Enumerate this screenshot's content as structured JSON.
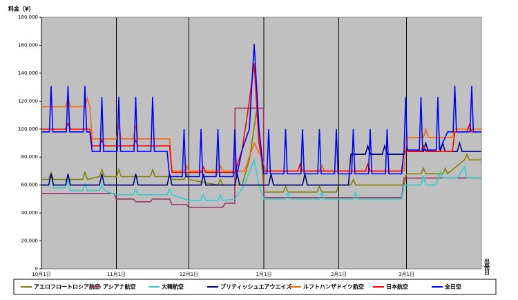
{
  "chart_data": {
    "type": "line",
    "y_label": "料金（¥）",
    "x_label": "出発日",
    "xlim": [
      0,
      182
    ],
    "ylim": [
      0,
      180000
    ],
    "xticks": [
      {
        "value": 0,
        "label": "10月1日"
      },
      {
        "value": 31,
        "label": "11月1日"
      },
      {
        "value": 61,
        "label": "12月1日"
      },
      {
        "value": 92,
        "label": "1月1日"
      },
      {
        "value": 123,
        "label": "2月1日"
      },
      {
        "value": 151,
        "label": "3月1日"
      }
    ],
    "yticks": [
      0,
      {
        "value": 20000,
        "label": "20,000"
      },
      {
        "value": 40000,
        "label": "40,000"
      },
      {
        "value": 60000,
        "label": "60,000"
      },
      {
        "value": 80000,
        "label": "80,000"
      },
      {
        "value": 100000,
        "label": "100,000"
      },
      {
        "value": 120000,
        "label": "120,000"
      },
      {
        "value": 140000,
        "label": "140,000"
      },
      {
        "value": 160000,
        "label": "160,000"
      },
      {
        "value": 180000,
        "label": "180,000"
      }
    ],
    "series": [
      {
        "name": "アエロフロートロシア航空",
        "color": "#808000",
        "x": [
          0,
          3,
          4,
          5,
          17,
          18,
          19,
          24,
          25,
          26,
          31,
          32,
          33,
          45,
          46,
          47,
          53,
          54,
          59,
          60,
          61,
          73,
          74,
          75,
          83,
          86,
          89,
          91,
          92,
          100,
          101,
          102,
          114,
          115,
          116,
          122,
          123,
          128,
          129,
          130,
          150,
          151,
          157,
          158,
          159,
          166,
          167,
          168,
          175,
          176,
          177,
          182
        ],
        "values": [
          64000,
          64000,
          69000,
          64000,
          64000,
          69000,
          64000,
          66000,
          71000,
          66000,
          66000,
          71000,
          66000,
          66000,
          71000,
          66000,
          66000,
          64000,
          64000,
          68000,
          64000,
          60000,
          64000,
          60000,
          60000,
          78000,
          113000,
          80000,
          55000,
          55000,
          59000,
          55000,
          55000,
          59000,
          55000,
          55000,
          60000,
          60000,
          64000,
          60000,
          60000,
          68000,
          68000,
          72000,
          68000,
          68000,
          72000,
          68000,
          78000,
          82000,
          78000,
          78000
        ]
      },
      {
        "name": "アシアナ航空",
        "color": "#993366",
        "x": [
          0,
          30,
          31,
          38,
          39,
          45,
          46,
          53,
          54,
          60,
          61,
          75,
          76,
          80,
          80.1,
          91.9,
          92,
          122,
          123,
          149,
          150,
          182
        ],
        "values": [
          54000,
          54000,
          50000,
          50000,
          48000,
          48000,
          50000,
          50000,
          46000,
          46000,
          44000,
          44000,
          47000,
          47000,
          115000,
          115000,
          51000,
          51000,
          51000,
          51000,
          65000,
          65000
        ]
      },
      {
        "name": "大韓航空",
        "color": "#33cccc",
        "x": [
          0,
          3,
          4,
          5,
          10,
          11,
          12,
          17,
          18,
          19,
          24,
          25,
          26,
          31,
          38,
          39,
          40,
          52,
          53,
          54,
          61,
          66,
          67,
          68,
          73,
          74,
          75,
          80,
          84,
          88,
          90,
          92,
          101,
          102,
          103,
          115,
          116,
          117,
          129,
          130,
          131,
          149,
          150,
          157,
          158,
          159,
          163,
          165,
          166,
          172,
          175,
          176,
          182
        ],
        "values": [
          60000,
          60000,
          68000,
          58000,
          58000,
          64000,
          56000,
          56000,
          61000,
          56000,
          56000,
          60000,
          56000,
          53000,
          53000,
          57000,
          53000,
          53000,
          57000,
          53000,
          49000,
          49000,
          53000,
          49000,
          49000,
          53000,
          49000,
          50000,
          60000,
          78000,
          60000,
          50000,
          50000,
          55000,
          50000,
          50000,
          55000,
          50000,
          50000,
          55000,
          50000,
          50000,
          60000,
          60000,
          67000,
          60000,
          60000,
          69000,
          65000,
          65000,
          73000,
          65000,
          65000
        ]
      },
      {
        "name": "ブリティッシュエアウエイズ",
        "color": "#000080",
        "x": [
          0,
          3,
          4,
          5,
          10,
          11,
          12,
          24,
          25,
          26,
          38,
          39,
          40,
          52,
          53,
          54,
          66,
          67,
          68,
          80,
          81,
          82,
          94,
          95,
          96,
          108,
          109,
          110,
          127,
          128,
          134,
          135,
          136,
          141,
          142,
          143,
          150,
          151,
          158,
          159,
          160,
          165,
          166,
          167,
          172,
          173,
          174,
          182
        ],
        "values": [
          60000,
          60000,
          68000,
          60000,
          60000,
          68000,
          60000,
          60000,
          68000,
          60000,
          60000,
          68000,
          60000,
          60000,
          68000,
          60000,
          60000,
          68000,
          60000,
          60000,
          68000,
          60000,
          60000,
          68000,
          60000,
          60000,
          68000,
          60000,
          60000,
          82000,
          82000,
          88000,
          82000,
          82000,
          88000,
          82000,
          82000,
          84000,
          84000,
          90000,
          84000,
          84000,
          90000,
          84000,
          84000,
          90000,
          84000,
          84000
        ]
      },
      {
        "name": "ルフトハンザドイツ航空",
        "color": "#ff6600",
        "x": [
          0,
          10,
          11,
          12,
          18,
          19,
          20,
          21,
          31,
          32,
          33,
          38,
          39,
          40,
          53,
          54,
          59,
          60,
          61,
          73,
          74,
          75,
          84,
          88,
          91,
          93,
          115,
          116,
          117,
          150,
          151,
          158,
          159,
          160,
          170,
          171,
          182
        ],
        "values": [
          116000,
          116000,
          122000,
          116000,
          116000,
          122000,
          116000,
          93000,
          93000,
          103000,
          93000,
          93000,
          103000,
          93000,
          93000,
          70000,
          70000,
          74000,
          70000,
          70000,
          74000,
          70000,
          70000,
          90000,
          80000,
          70000,
          70000,
          74000,
          70000,
          70000,
          94000,
          94000,
          100000,
          94000,
          94000,
          100000,
          100000
        ]
      },
      {
        "name": "日本航空",
        "color": "#ff0000",
        "x": [
          0,
          10,
          11,
          12,
          20,
          21,
          24,
          25,
          26,
          38,
          39,
          40,
          53,
          54,
          66,
          67,
          68,
          80,
          83,
          86,
          88,
          90,
          92,
          106,
          107,
          108,
          134,
          135,
          136,
          149,
          150,
          157,
          158,
          159,
          170,
          171,
          176,
          177,
          178,
          182
        ],
        "values": [
          100000,
          100000,
          104000,
          100000,
          100000,
          88000,
          88000,
          92000,
          88000,
          88000,
          92000,
          88000,
          88000,
          69000,
          69000,
          73000,
          69000,
          69000,
          85000,
          120000,
          147000,
          90000,
          70000,
          70000,
          75000,
          70000,
          70000,
          75000,
          70000,
          70000,
          84000,
          84000,
          88000,
          84000,
          84000,
          98000,
          98000,
          103000,
          98000,
          98000
        ]
      },
      {
        "name": "全日空",
        "color": "#0000ff",
        "x": [
          0,
          3.3,
          4,
          4.7,
          10.3,
          11,
          11.7,
          17.3,
          18,
          18.7,
          20,
          21,
          24.3,
          25,
          25.7,
          31.3,
          32,
          32.7,
          38.3,
          39,
          39.7,
          45.3,
          46,
          46.7,
          52,
          53,
          58.3,
          59,
          59.7,
          65.3,
          66,
          66.7,
          72.3,
          73,
          73.7,
          79.3,
          80,
          80.7,
          83,
          86,
          88,
          90,
          92,
          93.3,
          94,
          94.7,
          100.3,
          101,
          101.7,
          107.3,
          108,
          108.7,
          114.3,
          115,
          115.7,
          121.3,
          122,
          122.7,
          128.3,
          129,
          129.7,
          135.3,
          136,
          136.7,
          142.3,
          143,
          143.7,
          149,
          150,
          150.7,
          151.3,
          156.3,
          157,
          157.7,
          163.3,
          164,
          164.7,
          168,
          170.3,
          171,
          171.7,
          177.3,
          178,
          178.7,
          182
        ],
        "values": [
          98000,
          98000,
          131000,
          98000,
          98000,
          131000,
          98000,
          98000,
          131000,
          98000,
          98000,
          84000,
          84000,
          123000,
          84000,
          84000,
          123000,
          84000,
          84000,
          123000,
          84000,
          84000,
          123000,
          84000,
          84000,
          66000,
          66000,
          100000,
          66000,
          66000,
          100000,
          66000,
          66000,
          100000,
          66000,
          66000,
          100000,
          66000,
          85000,
          100000,
          161000,
          100000,
          68000,
          68000,
          100000,
          68000,
          68000,
          100000,
          68000,
          68000,
          100000,
          68000,
          68000,
          100000,
          68000,
          68000,
          100000,
          68000,
          68000,
          100000,
          68000,
          68000,
          100000,
          68000,
          68000,
          100000,
          68000,
          68000,
          85000,
          123000,
          85000,
          85000,
          123000,
          85000,
          85000,
          123000,
          85000,
          98000,
          98000,
          131000,
          98000,
          98000,
          131000,
          98000,
          98000
        ]
      }
    ]
  }
}
